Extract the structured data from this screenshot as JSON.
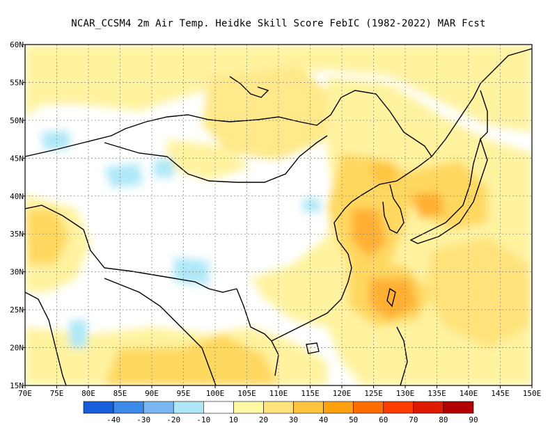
{
  "title": "NCAR_CCSM4  2m Air Temp. Heidke Skill Score FebIC (1982-2022) MAR Fcst",
  "map": {
    "lon_labels": [
      "70E",
      "75E",
      "80E",
      "85E",
      "90E",
      "95E",
      "100E",
      "105E",
      "110E",
      "115E",
      "120E",
      "125E",
      "130E",
      "135E",
      "140E",
      "145E",
      "150E"
    ],
    "lat_labels": [
      "60N",
      "55N",
      "50N",
      "45N",
      "40N",
      "35N",
      "30N",
      "25N",
      "20N",
      "15N"
    ],
    "lon_range": [
      70,
      150
    ],
    "lat_range": [
      15,
      60
    ],
    "grid": "dotted"
  },
  "colorbar": {
    "labels": [
      "-40",
      "-30",
      "-20",
      "-10",
      "10",
      "20",
      "30",
      "40",
      "50",
      "60",
      "70",
      "80",
      "90"
    ],
    "colors": [
      "#1560d8",
      "#3c8ae8",
      "#7ab6f2",
      "#aee8f7",
      "#ffffff",
      "#fff8a5",
      "#ffe27a",
      "#ffc43f",
      "#ffa010",
      "#ff6c00",
      "#ff3c00",
      "#e01a00",
      "#b00000"
    ]
  }
}
